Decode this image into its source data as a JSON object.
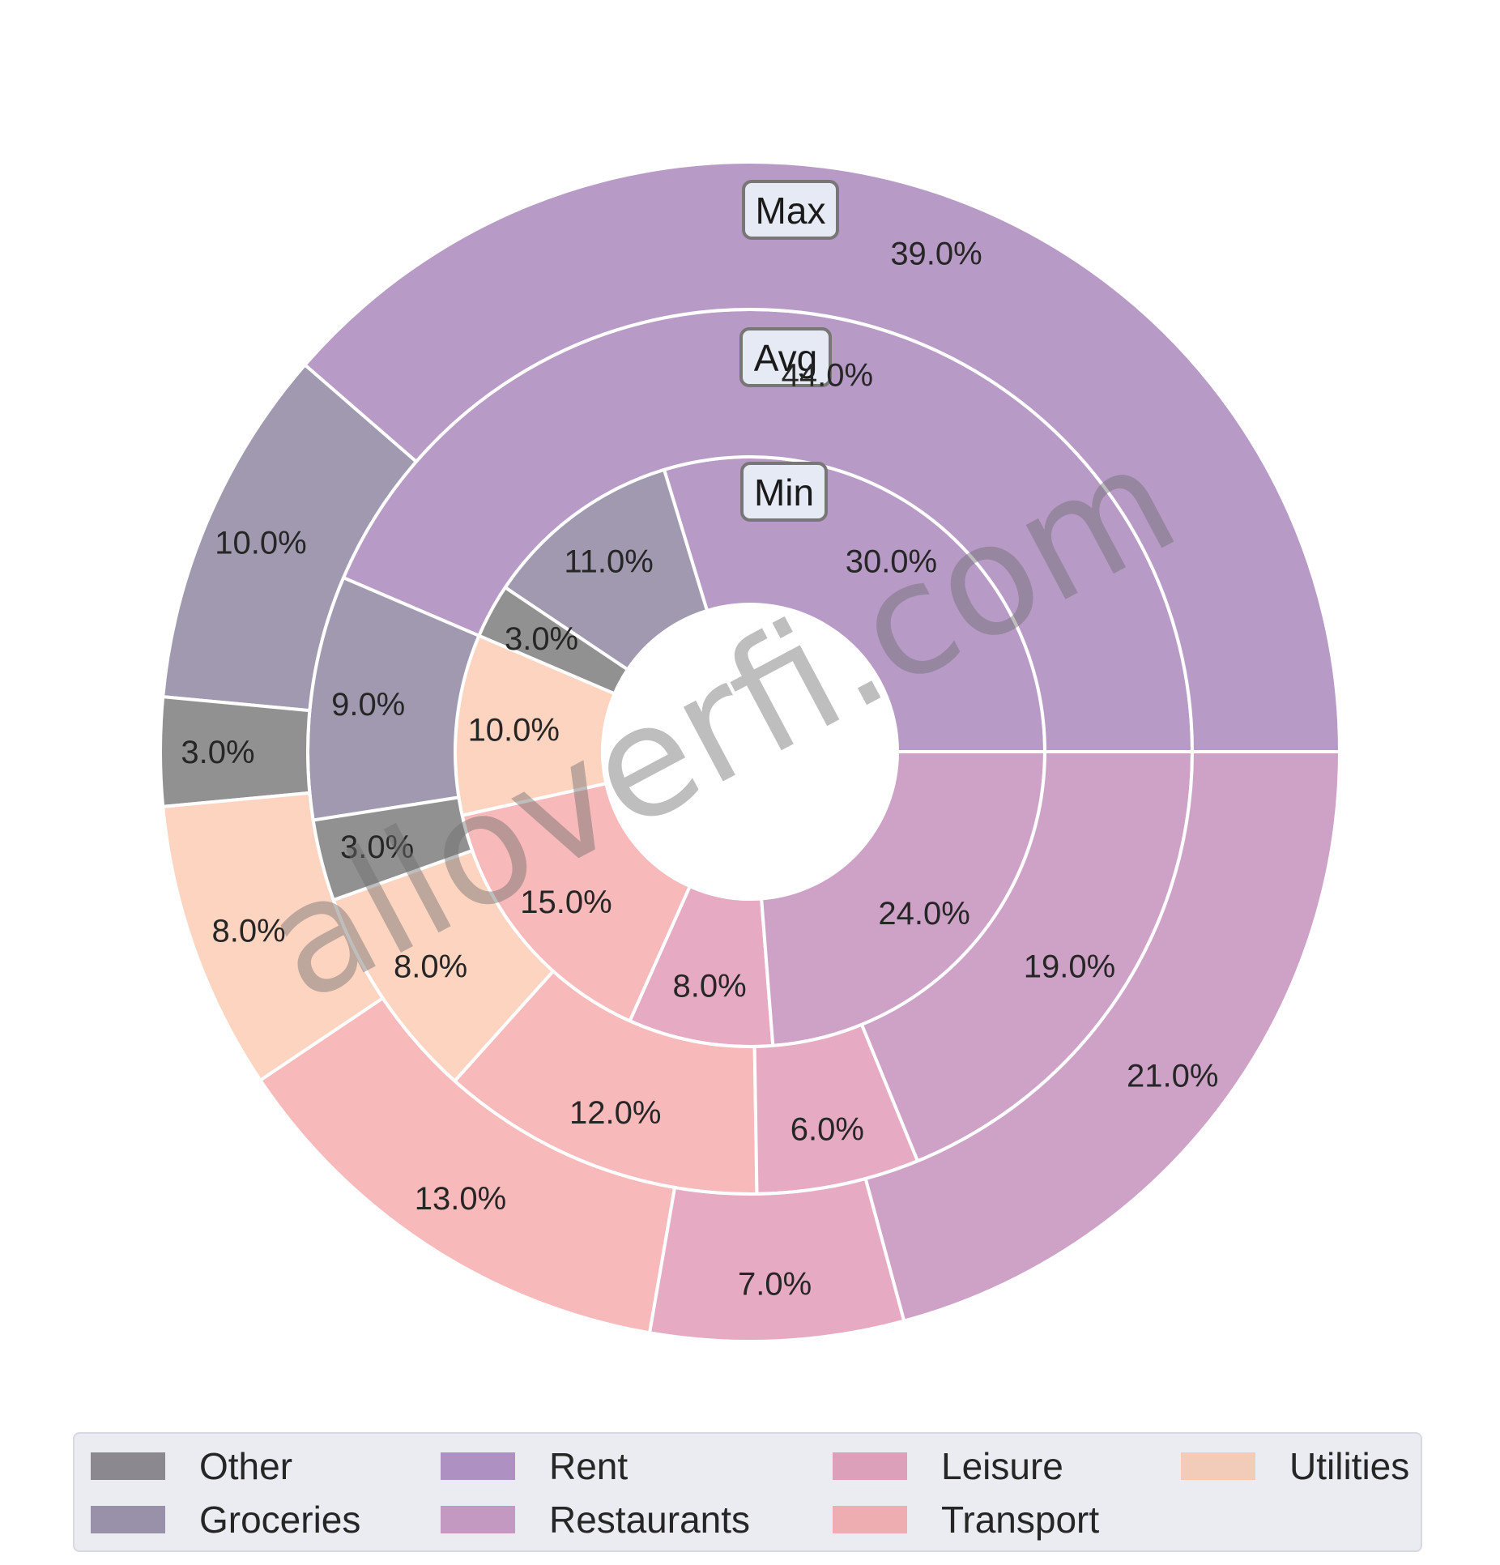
{
  "chart_data": {
    "type": "pie",
    "subtype": "nested-donut",
    "categories": [
      "Rent",
      "Groceries",
      "Other",
      "Utilities",
      "Transport",
      "Leisure",
      "Restaurants"
    ],
    "colors": {
      "Rent": "#b79ac6",
      "Groceries": "#a199b0",
      "Other": "#919191",
      "Utilities": "#fdd4c0",
      "Transport": "#f7b9b9",
      "Leisure": "#e6aac2",
      "Restaurants": "#cea2c6"
    },
    "series": [
      {
        "name": "Min",
        "values": [
          30,
          11,
          3,
          10,
          15,
          8,
          24
        ],
        "labels": [
          "30.0%",
          "11.0%",
          "3.0%",
          "10.0%",
          "15.0%",
          "8.0%",
          "24.0%"
        ]
      },
      {
        "name": "Avg",
        "values": [
          44,
          9,
          3,
          8,
          12,
          6,
          19
        ],
        "labels": [
          "44.0%",
          "9.0%",
          "3.0%",
          "8.0%",
          "12.0%",
          "6.0%",
          "19.0%"
        ]
      },
      {
        "name": "Max",
        "values": [
          39,
          10,
          3,
          8,
          13,
          7,
          21
        ],
        "labels": [
          "39.0%",
          "10.0%",
          "3.0%",
          "8.0%",
          "13.0%",
          "7.0%",
          "21.0%"
        ]
      }
    ],
    "ring_labels": [
      "Min",
      "Avg",
      "Max"
    ],
    "legend": {
      "placement": "bottom",
      "entries": [
        {
          "label": "Other",
          "color": "#8b898f"
        },
        {
          "label": "Groceries",
          "color": "#9990aa"
        },
        {
          "label": "Rent",
          "color": "#ae90c2"
        },
        {
          "label": "Restaurants",
          "color": "#c499c1"
        },
        {
          "label": "Leisure",
          "color": "#dca0bb"
        },
        {
          "label": "Transport",
          "color": "#eeaeb1"
        },
        {
          "label": "Utilities",
          "color": "#f3cbb9"
        }
      ]
    },
    "watermark": "alloverfi.com"
  }
}
